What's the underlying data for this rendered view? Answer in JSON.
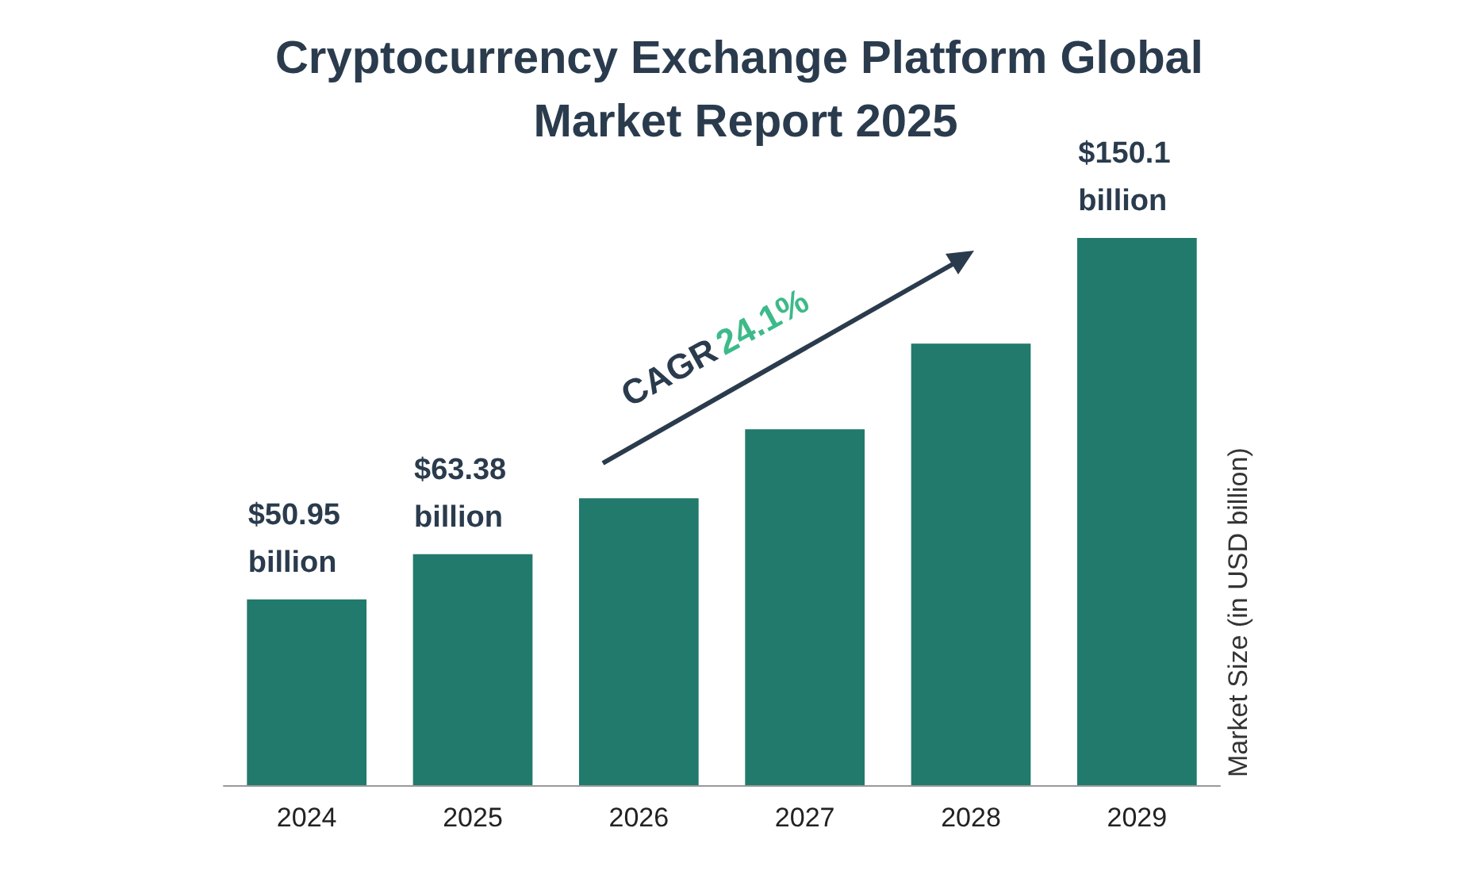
{
  "chart_data": {
    "type": "bar",
    "title": "Cryptocurrency Exchange Platform Global Market Report 2025",
    "ylabel": "Market Size (in USD billion)",
    "categories": [
      "2024",
      "2025",
      "2026",
      "2027",
      "2028",
      "2029"
    ],
    "values": [
      50.95,
      63.38,
      78.7,
      97.6,
      121.1,
      150.1
    ],
    "value_labels": [
      "$50.95 billion",
      "$63.38 billion",
      null,
      null,
      null,
      "$150.1 billion"
    ],
    "color": "#217a6b",
    "annotations": [
      "CAGR 24.1%"
    ]
  }
}
